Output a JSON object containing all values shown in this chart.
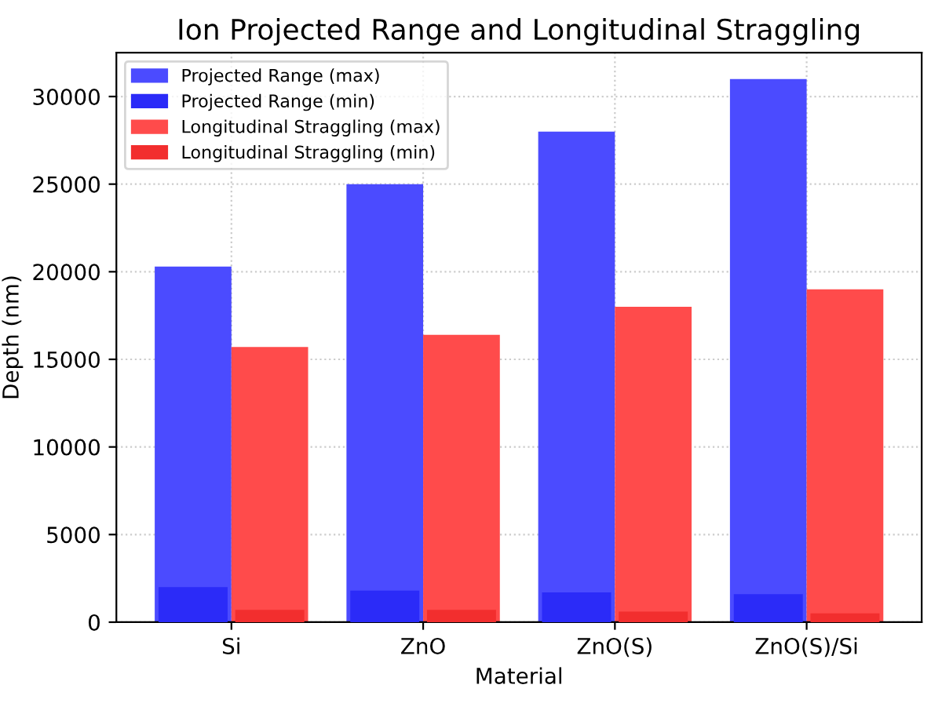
{
  "chart_data": {
    "type": "bar",
    "title": "Ion Projected Range and Longitudinal Straggling",
    "xlabel": "Material",
    "ylabel": "Depth (nm)",
    "categories": [
      "Si",
      "ZnO",
      "ZnO(S)",
      "ZnO(S)/Si"
    ],
    "series": [
      {
        "name": "Projected Range (max)",
        "color": "#4b4bff",
        "values": [
          20300,
          25000,
          28000,
          31000
        ]
      },
      {
        "name": "Projected Range (min)",
        "color": "#2b2bf8",
        "values": [
          2000,
          1800,
          1700,
          1600
        ]
      },
      {
        "name": "Longitudinal Straggling (max)",
        "color": "#ff4b4b",
        "values": [
          15700,
          16400,
          18000,
          19000
        ]
      },
      {
        "name": "Longitudinal Straggling (min)",
        "color": "#f22e2e",
        "values": [
          700,
          700,
          600,
          500
        ]
      }
    ],
    "ylim": [
      0,
      32500
    ],
    "yticks": [
      0,
      5000,
      10000,
      15000,
      20000,
      25000,
      30000
    ],
    "grid": true,
    "legend": "top left"
  }
}
